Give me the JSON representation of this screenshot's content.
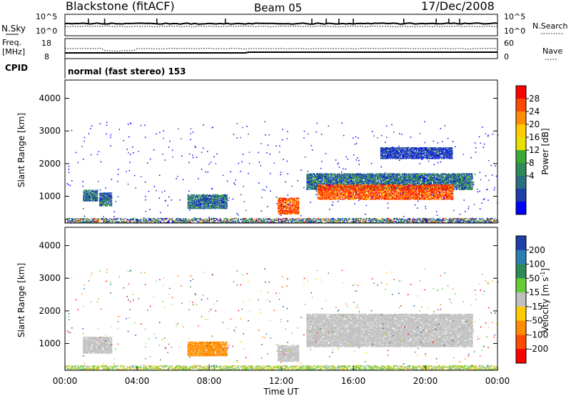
{
  "header": {
    "station": "Blackstone (fitACF)",
    "beam": "Beam 05",
    "date": "17/Dec/2008"
  },
  "panels": {
    "nsky": {
      "label": "N.Sky",
      "right_label": "N.Search",
      "left_ticks": [
        "10^5",
        "10^0"
      ],
      "right_ticks": [
        "10^5",
        "10^0"
      ]
    },
    "freq": {
      "label_line1": "Freq.",
      "label_line2": "[MHz]",
      "right_label": "Nave",
      "left_ticks": [
        "18",
        "8"
      ],
      "right_ticks": [
        "60",
        "0"
      ]
    },
    "cpid": {
      "label": "CPID",
      "value": "normal (fast stereo) 153"
    }
  },
  "colorbars": {
    "power": {
      "title": "Power [dB]",
      "ticks": [
        "28",
        "24",
        "20",
        "16",
        "12",
        "8",
        "4"
      ],
      "colors": [
        "#ff0000",
        "#ff4a00",
        "#ff8c00",
        "#ffcc00",
        "#e8e000",
        "#3aaa35",
        "#2e8b57",
        "#2a6f7f",
        "#1f3fa8",
        "#0000ff"
      ]
    },
    "velocity": {
      "title_main": "Velocity [m s",
      "title_sup": "-1",
      "title_end": "]",
      "ticks": [
        "200",
        "100",
        "50",
        "15",
        "-15",
        "-50",
        "-100",
        "-200"
      ],
      "colors": [
        "#1f3fa8",
        "#2b7fb5",
        "#2e8b57",
        "#66cc33",
        "#c0c0c0",
        "#ffcc00",
        "#ff8c00",
        "#ff4a00",
        "#ff0000"
      ]
    }
  },
  "chart_data": {
    "type": "heatmap",
    "xlabel": "Time UT",
    "ylabel": "Slant Range [km]",
    "x_ticks": [
      "00:00",
      "04:00",
      "08:00",
      "12:00",
      "16:00",
      "20:00",
      "00:00"
    ],
    "x_range_hours": [
      0,
      24
    ],
    "y_ticks": [
      1000,
      2000,
      3000,
      4000
    ],
    "y_range_km": [
      180,
      4560
    ],
    "power_regions": [
      {
        "t0": 1.0,
        "t1": 1.8,
        "r0": 850,
        "r1": 1200,
        "level": "mid"
      },
      {
        "t0": 1.9,
        "t1": 2.6,
        "r0": 700,
        "r1": 1100,
        "level": "mid"
      },
      {
        "t0": 6.8,
        "t1": 9.0,
        "r0": 620,
        "r1": 1050,
        "level": "mid"
      },
      {
        "t0": 11.8,
        "t1": 13.0,
        "r0": 450,
        "r1": 950,
        "level": "high"
      },
      {
        "t0": 13.4,
        "t1": 22.6,
        "r0": 1200,
        "r1": 1700,
        "level": "mid"
      },
      {
        "t0": 14.0,
        "t1": 21.5,
        "r0": 900,
        "r1": 1350,
        "level": "high"
      },
      {
        "t0": 17.5,
        "t1": 21.5,
        "r0": 2150,
        "r1": 2500,
        "level": "low"
      }
    ],
    "velocity_regions": [
      {
        "t0": 6.8,
        "t1": 9.0,
        "r0": 620,
        "r1": 1050,
        "velocity": -80
      },
      {
        "t0": 1.0,
        "t1": 2.6,
        "r0": 700,
        "r1": 1200,
        "velocity": 0
      },
      {
        "t0": 11.8,
        "t1": 13.0,
        "r0": 450,
        "r1": 950,
        "velocity": 0
      },
      {
        "t0": 13.4,
        "t1": 22.6,
        "r0": 900,
        "r1": 1900,
        "velocity": 0
      }
    ]
  }
}
